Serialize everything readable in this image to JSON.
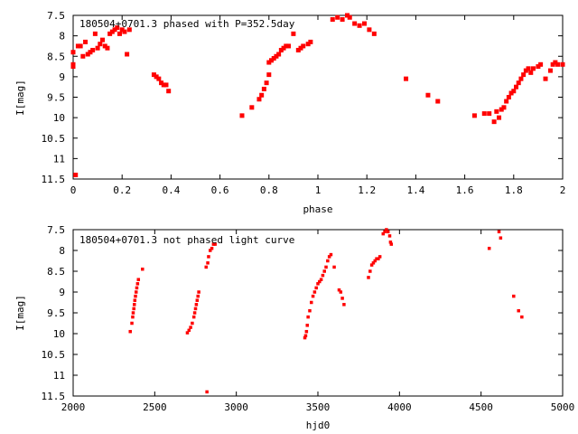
{
  "chart_data": [
    {
      "type": "scatter",
      "title": "180504+0701.3 phased with P=352.5day",
      "xlabel": "phase",
      "ylabel": "I[mag]",
      "xlim": [
        0,
        2
      ],
      "ylim": [
        11.5,
        7.5
      ],
      "y_inverted": true,
      "x_ticks": [
        "0",
        "0.2",
        "0.4",
        "0.6",
        "0.8",
        "1",
        "1.2",
        "1.4",
        "1.6",
        "1.8",
        "2"
      ],
      "y_ticks": [
        "7.5",
        "8",
        "8.5",
        "9",
        "9.5",
        "10",
        "10.5",
        "11",
        "11.5"
      ],
      "grid": false,
      "legend": "none",
      "marker_color": "#ff0000",
      "series": [
        {
          "points": [
            [
              0.0,
              8.4
            ],
            [
              0.0,
              8.7
            ],
            [
              0.0,
              8.75
            ],
            [
              0.01,
              11.4
            ],
            [
              0.02,
              8.25
            ],
            [
              0.03,
              8.25
            ],
            [
              0.04,
              8.5
            ],
            [
              0.05,
              8.15
            ],
            [
              0.06,
              8.45
            ],
            [
              0.07,
              8.4
            ],
            [
              0.08,
              8.35
            ],
            [
              0.09,
              7.95
            ],
            [
              0.1,
              8.3
            ],
            [
              0.11,
              8.2
            ],
            [
              0.12,
              8.1
            ],
            [
              0.13,
              8.25
            ],
            [
              0.14,
              8.3
            ],
            [
              0.15,
              7.95
            ],
            [
              0.16,
              7.9
            ],
            [
              0.17,
              7.85
            ],
            [
              0.18,
              7.8
            ],
            [
              0.19,
              7.95
            ],
            [
              0.2,
              7.85
            ],
            [
              0.21,
              7.9
            ],
            [
              0.22,
              8.45
            ],
            [
              0.23,
              7.85
            ],
            [
              0.33,
              8.95
            ],
            [
              0.34,
              9.0
            ],
            [
              0.35,
              9.05
            ],
            [
              0.36,
              9.15
            ],
            [
              0.37,
              9.2
            ],
            [
              0.38,
              9.2
            ],
            [
              0.39,
              9.35
            ],
            [
              0.69,
              9.95
            ],
            [
              0.73,
              9.75
            ],
            [
              0.76,
              9.55
            ],
            [
              0.77,
              9.45
            ],
            [
              0.78,
              9.3
            ],
            [
              0.79,
              9.15
            ],
            [
              0.8,
              8.95
            ],
            [
              0.8,
              8.65
            ],
            [
              0.81,
              8.6
            ],
            [
              0.82,
              8.55
            ],
            [
              0.83,
              8.5
            ],
            [
              0.84,
              8.45
            ],
            [
              0.85,
              8.35
            ],
            [
              0.86,
              8.3
            ],
            [
              0.87,
              8.25
            ],
            [
              0.88,
              8.25
            ],
            [
              0.9,
              7.95
            ],
            [
              0.92,
              8.35
            ],
            [
              0.93,
              8.3
            ],
            [
              0.94,
              8.25
            ],
            [
              0.96,
              8.2
            ],
            [
              0.97,
              8.15
            ],
            [
              1.06,
              7.6
            ],
            [
              1.08,
              7.55
            ],
            [
              1.1,
              7.6
            ],
            [
              1.12,
              7.5
            ],
            [
              1.13,
              7.55
            ],
            [
              1.15,
              7.7
            ],
            [
              1.17,
              7.75
            ],
            [
              1.19,
              7.7
            ],
            [
              1.21,
              7.85
            ],
            [
              1.23,
              7.95
            ],
            [
              1.36,
              9.05
            ],
            [
              1.45,
              9.45
            ],
            [
              1.49,
              9.6
            ],
            [
              1.64,
              9.95
            ],
            [
              1.68,
              9.9
            ],
            [
              1.7,
              9.9
            ],
            [
              1.72,
              10.1
            ],
            [
              1.73,
              9.85
            ],
            [
              1.74,
              10.0
            ],
            [
              1.75,
              9.8
            ],
            [
              1.76,
              9.75
            ],
            [
              1.77,
              9.6
            ],
            [
              1.78,
              9.5
            ],
            [
              1.79,
              9.4
            ],
            [
              1.8,
              9.35
            ],
            [
              1.81,
              9.25
            ],
            [
              1.82,
              9.15
            ],
            [
              1.83,
              9.05
            ],
            [
              1.84,
              8.95
            ],
            [
              1.85,
              8.85
            ],
            [
              1.86,
              8.8
            ],
            [
              1.87,
              8.9
            ],
            [
              1.88,
              8.8
            ],
            [
              1.9,
              8.75
            ],
            [
              1.91,
              8.7
            ],
            [
              1.93,
              9.05
            ],
            [
              1.95,
              8.85
            ],
            [
              1.96,
              8.7
            ],
            [
              1.97,
              8.65
            ],
            [
              1.98,
              8.7
            ],
            [
              2.0,
              8.7
            ]
          ]
        }
      ]
    },
    {
      "type": "scatter",
      "title": "180504+0701.3 not phased light curve",
      "xlabel": "hjd0",
      "ylabel": "I[mag]",
      "xlim": [
        2000,
        5000
      ],
      "ylim": [
        11.5,
        7.5
      ],
      "y_inverted": true,
      "x_ticks": [
        "2000",
        "2500",
        "3000",
        "3500",
        "4000",
        "4500",
        "5000"
      ],
      "y_ticks": [
        "7.5",
        "8",
        "8.5",
        "9",
        "9.5",
        "10",
        "10.5",
        "11",
        "11.5"
      ],
      "grid": false,
      "legend": "none",
      "marker_color": "#ff0000",
      "series": [
        {
          "points": [
            [
              2350,
              9.95
            ],
            [
              2360,
              9.75
            ],
            [
              2365,
              9.6
            ],
            [
              2368,
              9.5
            ],
            [
              2372,
              9.4
            ],
            [
              2375,
              9.3
            ],
            [
              2378,
              9.2
            ],
            [
              2382,
              9.1
            ],
            [
              2386,
              9.0
            ],
            [
              2390,
              8.9
            ],
            [
              2395,
              8.8
            ],
            [
              2400,
              8.7
            ],
            [
              2425,
              8.45
            ],
            [
              2700,
              9.98
            ],
            [
              2710,
              9.92
            ],
            [
              2720,
              9.85
            ],
            [
              2730,
              9.75
            ],
            [
              2740,
              9.6
            ],
            [
              2745,
              9.5
            ],
            [
              2750,
              9.4
            ],
            [
              2755,
              9.3
            ],
            [
              2760,
              9.2
            ],
            [
              2765,
              9.1
            ],
            [
              2770,
              9.0
            ],
            [
              2820,
              11.4
            ],
            [
              2815,
              8.4
            ],
            [
              2825,
              8.3
            ],
            [
              2830,
              8.15
            ],
            [
              2840,
              8.0
            ],
            [
              2850,
              7.95
            ],
            [
              2860,
              7.85
            ],
            [
              2870,
              7.85
            ],
            [
              3420,
              10.1
            ],
            [
              3425,
              10.05
            ],
            [
              3430,
              9.95
            ],
            [
              3435,
              9.8
            ],
            [
              3440,
              9.6
            ],
            [
              3450,
              9.45
            ],
            [
              3460,
              9.25
            ],
            [
              3470,
              9.1
            ],
            [
              3480,
              9.0
            ],
            [
              3490,
              8.9
            ],
            [
              3500,
              8.8
            ],
            [
              3510,
              8.75
            ],
            [
              3520,
              8.7
            ],
            [
              3530,
              8.6
            ],
            [
              3540,
              8.5
            ],
            [
              3550,
              8.4
            ],
            [
              3560,
              8.25
            ],
            [
              3570,
              8.15
            ],
            [
              3580,
              8.1
            ],
            [
              3600,
              8.4
            ],
            [
              3630,
              8.95
            ],
            [
              3640,
              9.0
            ],
            [
              3650,
              9.15
            ],
            [
              3660,
              9.3
            ],
            [
              3810,
              8.65
            ],
            [
              3820,
              8.5
            ],
            [
              3830,
              8.35
            ],
            [
              3840,
              8.3
            ],
            [
              3850,
              8.25
            ],
            [
              3860,
              8.2
            ],
            [
              3870,
              8.2
            ],
            [
              3880,
              8.15
            ],
            [
              3900,
              7.6
            ],
            [
              3910,
              7.55
            ],
            [
              3920,
              7.5
            ],
            [
              3930,
              7.55
            ],
            [
              3940,
              7.65
            ],
            [
              3945,
              7.8
            ],
            [
              3950,
              7.85
            ],
            [
              4550,
              7.95
            ],
            [
              4610,
              7.55
            ],
            [
              4620,
              7.7
            ],
            [
              4700,
              9.1
            ],
            [
              4730,
              9.45
            ],
            [
              4750,
              9.6
            ]
          ]
        }
      ]
    }
  ]
}
